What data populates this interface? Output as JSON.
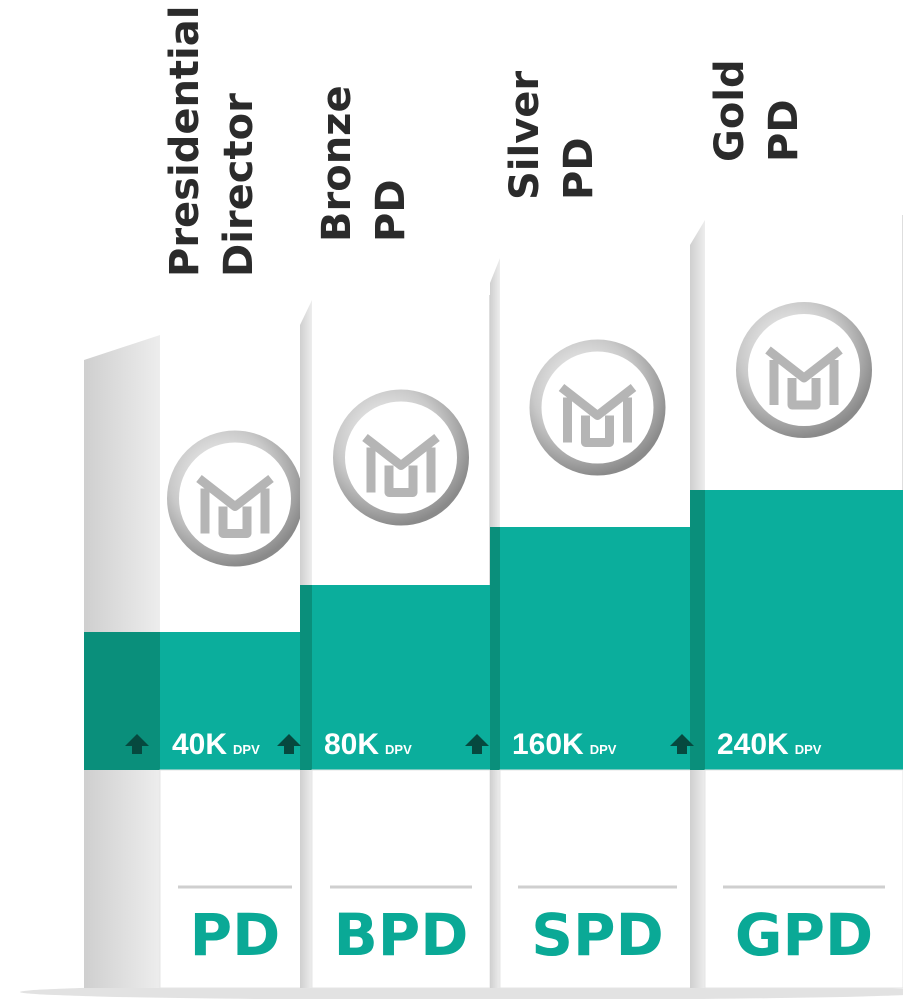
{
  "tiers": [
    {
      "title": [
        "Presidential",
        "Director"
      ],
      "requirement": "40K",
      "unit": "DPV",
      "code": "PD"
    },
    {
      "title": [
        "Bronze",
        "PD"
      ],
      "requirement": "80K",
      "unit": "DPV",
      "code": "BPD"
    },
    {
      "title": [
        "Silver",
        "PD"
      ],
      "requirement": "160K",
      "unit": "DPV",
      "code": "SPD"
    },
    {
      "title": [
        "Gold",
        "PD"
      ],
      "requirement": "240K",
      "unit": "DPV",
      "code": "GPD"
    }
  ]
}
